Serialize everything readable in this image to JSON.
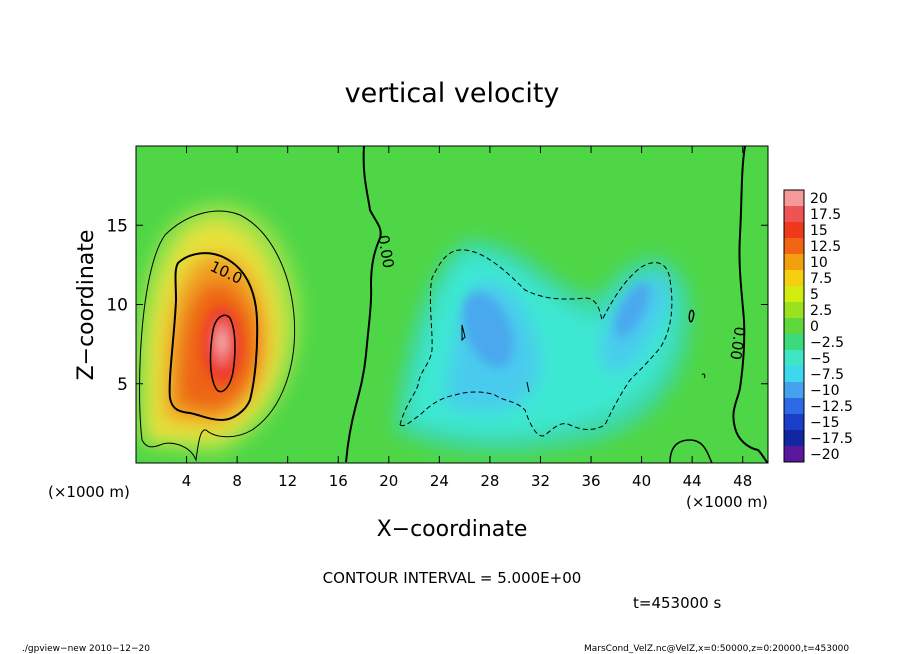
{
  "chart_data": {
    "type": "heatmap",
    "title": "vertical velocity",
    "xlabel": "X−coordinate",
    "ylabel": "Z−coordinate",
    "x_unit_left": "(×1000 m)",
    "x_unit_right": "(×1000 m)",
    "xlim": [
      0,
      50
    ],
    "ylim": [
      0,
      20
    ],
    "x_ticks": [
      4,
      8,
      12,
      16,
      20,
      24,
      28,
      32,
      36,
      40,
      44,
      48
    ],
    "x_tick_labels": [
      "4",
      "8",
      "12",
      "16",
      "20",
      "24",
      "28",
      "32",
      "36",
      "40",
      "44",
      "48"
    ],
    "y_ticks": [
      5,
      10,
      15
    ],
    "y_tick_labels": [
      "5",
      "10",
      "15"
    ],
    "contour_labels": [
      {
        "text": "10.0",
        "x": 7,
        "y": 12.3
      },
      {
        "text": "0.00",
        "x": 19.5,
        "y": 13.5
      },
      {
        "text": "0.00",
        "x": 47,
        "y": 7.5
      }
    ],
    "colorbar": {
      "labels": [
        "20",
        "17.5",
        "15",
        "12.5",
        "10",
        "7.5",
        "5",
        "2.5",
        "0",
        "−2.5",
        "−5",
        "−7.5",
        "−10",
        "−12.5",
        "−15",
        "−17.5",
        "−20"
      ],
      "colors": [
        "#f49a9a",
        "#ee5454",
        "#ee3a1a",
        "#f06414",
        "#f2a010",
        "#f4d010",
        "#d2ec10",
        "#9ae220",
        "#5ed83a",
        "#3cda7a",
        "#3ee6c6",
        "#3ed8ee",
        "#46a2ee",
        "#2e6ae6",
        "#1a3ec8",
        "#1226a2",
        "#5a189e"
      ]
    },
    "features": [
      {
        "name": "updraft",
        "center_x": 6.8,
        "center_z": 7.5,
        "peak": 18
      },
      {
        "name": "downdraft",
        "center_x": 26,
        "center_z": 8,
        "peak": -8
      },
      {
        "name": "downdraft",
        "center_x": 38.5,
        "center_z": 9,
        "peak": -6
      }
    ]
  },
  "annotations": {
    "contour_interval": "CONTOUR INTERVAL = 5.000E+00",
    "time": "t=453000 s",
    "footer_left": "./gpview−new   2010−12−20",
    "footer_right": "MarsCond_VelZ.nc@VelZ,x=0:50000,z=0:20000,t=453000"
  }
}
